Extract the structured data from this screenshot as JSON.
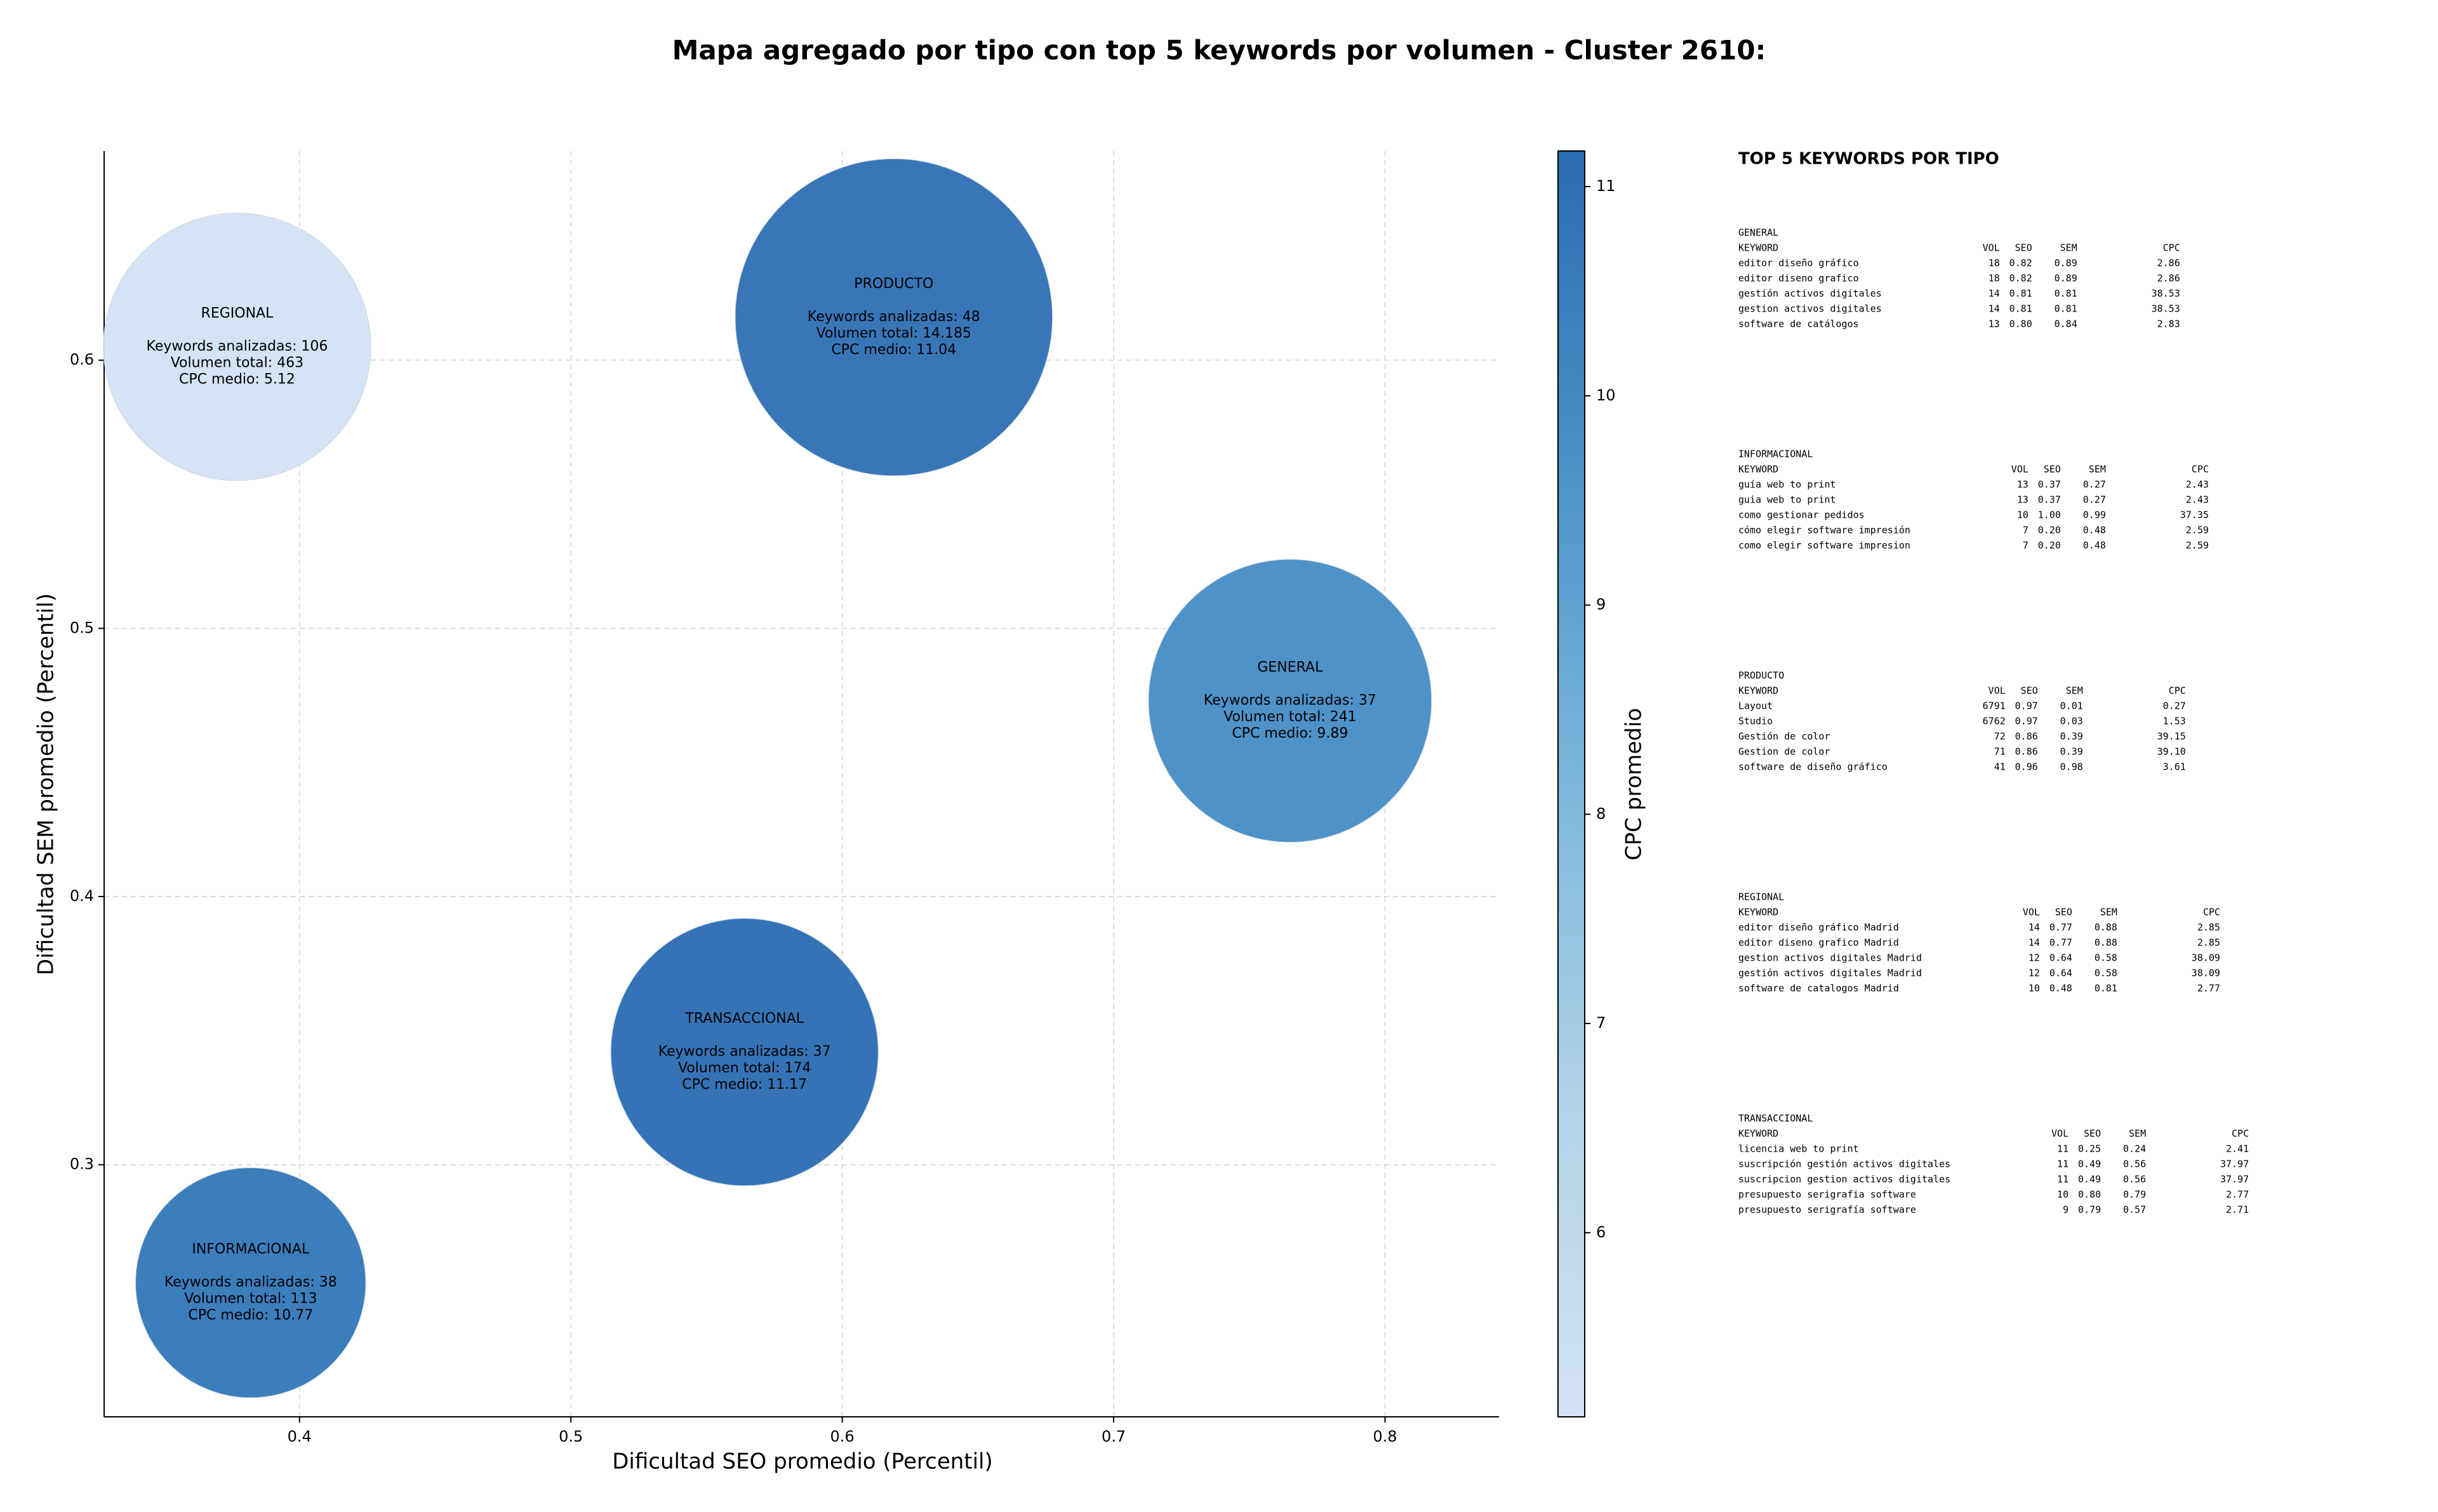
{
  "chart_data": {
    "type": "bubble",
    "title": "Mapa agregado por tipo con top 5 keywords por volumen - Cluster 2610:",
    "x_label": "Dificultad SEO promedio (Percentil)",
    "y_label": "Dificultad SEM promedio (Percentil)",
    "colorbar_label": "CPC promedio",
    "categories": [
      "GENERAL",
      "INFORMACIONAL",
      "PRODUCTO",
      "REGIONAL",
      "TRANSACCIONAL"
    ],
    "x": [
      0.765,
      0.382,
      0.619,
      0.377,
      0.564
    ],
    "y": [
      0.473,
      0.256,
      0.616,
      0.605,
      0.342
    ],
    "sizes": [
      8281,
      5476,
      10404,
      7396,
      7396
    ],
    "color_values": [
      9.89,
      10.77,
      11.04,
      5.12,
      11.17
    ],
    "annotations": [
      [
        "Keywords analizadas: 37",
        "Volumen total: 241",
        "CPC medio: 9.89"
      ],
      [
        "Keywords analizadas: 38",
        "Volumen total: 113",
        "CPC medio: 10.77"
      ],
      [
        "Keywords analizadas: 48",
        "Volumen total: 14.185",
        "CPC medio: 11.04"
      ],
      [
        "Keywords analizadas: 106",
        "Volumen total: 463",
        "CPC medio: 5.12"
      ],
      [
        "Keywords analizadas: 37",
        "Volumen total: 174",
        "CPC medio: 11.17"
      ]
    ],
    "xlim": [
      0.328,
      0.842
    ],
    "xticks": [
      0.4,
      0.5,
      0.6,
      0.7,
      0.8
    ],
    "ylim": [
      0.206,
      0.678
    ],
    "yticks": [
      0.3,
      0.4,
      0.5,
      0.6
    ],
    "clim": [
      5.12,
      11.17
    ],
    "cticks": [
      6,
      7,
      8,
      9,
      10,
      11
    ],
    "colormap": [
      "#d3e3f3",
      "#b0d2e8",
      "#7db7db",
      "#4a92c8",
      "#2a6cb2"
    ],
    "grid": true
  },
  "side_table": {
    "title": "TOP 5 KEYWORDS POR TIPO",
    "groups": [
      {
        "name": "GENERAL",
        "header": [
          "KEYWORD",
          "VOL",
          "SEO",
          "SEM",
          "CPC"
        ],
        "rows": [
          [
            "editor diseño gráfico",
            "18",
            "0.82",
            "0.89",
            "2.86"
          ],
          [
            "editor diseno grafico",
            "18",
            "0.82",
            "0.89",
            "2.86"
          ],
          [
            "gestión activos digitales",
            "14",
            "0.81",
            "0.81",
            "38.53"
          ],
          [
            "gestion activos digitales",
            "14",
            "0.81",
            "0.81",
            "38.53"
          ],
          [
            "software de catálogos",
            "13",
            "0.80",
            "0.84",
            "2.83"
          ]
        ]
      },
      {
        "name": "INFORMACIONAL",
        "header": [
          "KEYWORD",
          "VOL",
          "SEO",
          "SEM",
          "CPC"
        ],
        "rows": [
          [
            "guía web to print",
            "13",
            "0.37",
            "0.27",
            "2.43"
          ],
          [
            "guia web to print",
            "13",
            "0.37",
            "0.27",
            "2.43"
          ],
          [
            "como gestionar pedidos",
            "10",
            "1.00",
            "0.99",
            "37.35"
          ],
          [
            "cómo elegir software impresión",
            "7",
            "0.20",
            "0.48",
            "2.59"
          ],
          [
            "como elegir software impresion",
            "7",
            "0.20",
            "0.48",
            "2.59"
          ]
        ]
      },
      {
        "name": "PRODUCTO",
        "header": [
          "KEYWORD",
          "VOL",
          "SEO",
          "SEM",
          "CPC"
        ],
        "rows": [
          [
            "Layout",
            "6791",
            "0.97",
            "0.01",
            "0.27"
          ],
          [
            "Studio",
            "6762",
            "0.97",
            "0.03",
            "1.53"
          ],
          [
            "Gestión de color",
            "72",
            "0.86",
            "0.39",
            "39.15"
          ],
          [
            "Gestion de color",
            "71",
            "0.86",
            "0.39",
            "39.10"
          ],
          [
            "software de diseño gráfico",
            "41",
            "0.96",
            "0.98",
            "3.61"
          ]
        ]
      },
      {
        "name": "REGIONAL",
        "header": [
          "KEYWORD",
          "VOL",
          "SEO",
          "SEM",
          "CPC"
        ],
        "rows": [
          [
            "editor diseño gráfico Madrid",
            "14",
            "0.77",
            "0.88",
            "2.85"
          ],
          [
            "editor diseno grafico Madrid",
            "14",
            "0.77",
            "0.88",
            "2.85"
          ],
          [
            "gestion activos digitales Madrid",
            "12",
            "0.64",
            "0.58",
            "38.09"
          ],
          [
            "gestión activos digitales Madrid",
            "12",
            "0.64",
            "0.58",
            "38.09"
          ],
          [
            "software de catalogos Madrid",
            "10",
            "0.48",
            "0.81",
            "2.77"
          ]
        ]
      },
      {
        "name": "TRANSACCIONAL",
        "header": [
          "KEYWORD",
          "VOL",
          "SEO",
          "SEM",
          "CPC"
        ],
        "rows": [
          [
            "licencia web to print",
            "11",
            "0.25",
            "0.24",
            "2.41"
          ],
          [
            "suscripción gestión activos digitales",
            "11",
            "0.49",
            "0.56",
            "37.97"
          ],
          [
            "suscripcion gestion activos digitales",
            "11",
            "0.49",
            "0.56",
            "37.97"
          ],
          [
            "presupuesto serigrafia software",
            "10",
            "0.80",
            "0.79",
            "2.77"
          ],
          [
            "presupuesto serigrafía software",
            "9",
            "0.79",
            "0.57",
            "2.71"
          ]
        ]
      }
    ]
  }
}
